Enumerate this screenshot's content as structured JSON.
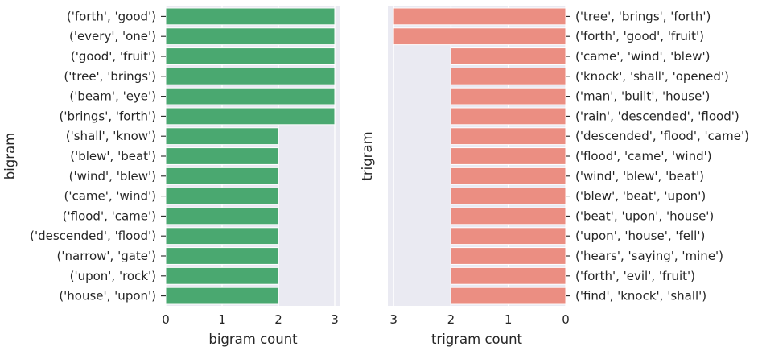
{
  "chart_data": [
    {
      "type": "bar",
      "orientation": "horizontal",
      "categories": [
        "('forth', 'good')",
        "('every', 'one')",
        "('good', 'fruit')",
        "('tree', 'brings')",
        "('beam', 'eye')",
        "('brings', 'forth')",
        "('shall', 'know')",
        "('blew', 'beat')",
        "('wind', 'blew')",
        "('came', 'wind')",
        "('flood', 'came')",
        "('descended', 'flood')",
        "('narrow', 'gate')",
        "('upon', 'rock')",
        "('house', 'upon')"
      ],
      "values": [
        3,
        3,
        3,
        3,
        3,
        3,
        2,
        2,
        2,
        2,
        2,
        2,
        2,
        2,
        2
      ],
      "xlabel": "bigram count",
      "ylabel": "bigram",
      "xlim": [
        0,
        3.1
      ],
      "xticks": [
        "0",
        "1",
        "2",
        "3"
      ],
      "bar_color": "#4aa870",
      "grid": true,
      "ytick_side": "left"
    },
    {
      "type": "bar",
      "orientation": "horizontal",
      "categories": [
        "('tree', 'brings', 'forth')",
        "('forth', 'good', 'fruit')",
        "('came', 'wind', 'blew')",
        "('knock', 'shall', 'opened')",
        "('man', 'built', 'house')",
        "('rain', 'descended', 'flood')",
        "('descended', 'flood', 'came')",
        "('flood', 'came', 'wind')",
        "('wind', 'blew', 'beat')",
        "('blew', 'beat', 'upon')",
        "('beat', 'upon', 'house')",
        "('upon', 'house', 'fell')",
        "('hears', 'saying', 'mine')",
        "('forth', 'evil', 'fruit')",
        "('find', 'knock', 'shall')"
      ],
      "values": [
        3,
        3,
        2,
        2,
        2,
        2,
        2,
        2,
        2,
        2,
        2,
        2,
        2,
        2,
        2
      ],
      "xlabel": "trigram count",
      "ylabel": "trigram",
      "xlim": [
        3.1,
        0
      ],
      "xaxis_inverted": true,
      "xticks": [
        "3",
        "2",
        "1",
        "0"
      ],
      "bar_color": "#eb8e82",
      "grid": true,
      "ytick_side": "right"
    }
  ],
  "style": {
    "plot_bg": "#eaeaf2",
    "grid_color": "#ffffff",
    "text_color": "#262626"
  }
}
